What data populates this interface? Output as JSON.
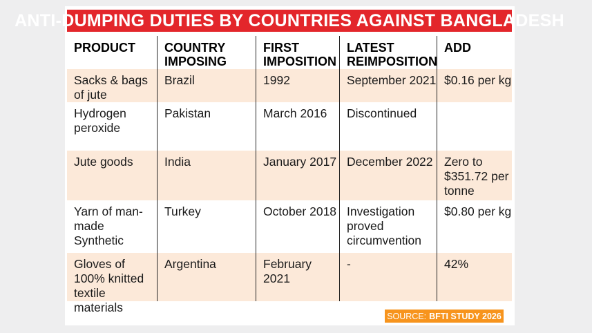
{
  "title": "ANTI-DUMPING DUTIES BY COUNTRIES AGAINST BANGLADESH",
  "columns": [
    "PRODUCT",
    "COUNTRY IMPOSING ADD",
    "FIRST IMPOSITION",
    "LATEST REIMPOSITION",
    "ADD"
  ],
  "rows": [
    [
      "Sacks & bags of jute",
      "Brazil",
      "1992",
      "September 2021",
      "$0.16 per kg"
    ],
    [
      "Hydrogen peroxide",
      "Pakistan",
      "March 2016",
      "Discontinued",
      ""
    ],
    [
      "Jute goods",
      "India",
      "January 2017",
      "December 2022",
      "Zero to $351.72 per tonne"
    ],
    [
      "Yarn of man-made Synthetic",
      "Turkey",
      "October 2018",
      "Investigation proved circumvention",
      "$0.80 per kg"
    ],
    [
      "Gloves of 100% knitted textile materials",
      "Argentina",
      "February 2021",
      "-",
      "42%"
    ]
  ],
  "source": {
    "prefix": "SOURCE:",
    "name": "BFTI STUDY 2026"
  },
  "colors": {
    "title_bg": "#e3262b",
    "row_shade": "#fce9d9",
    "source_bg": "#f7941d"
  },
  "chart_data": {
    "type": "table",
    "title": "ANTI-DUMPING DUTIES BY COUNTRIES AGAINST BANGLADESH",
    "columns": [
      "PRODUCT",
      "COUNTRY IMPOSING ADD",
      "FIRST IMPOSITION",
      "LATEST REIMPOSITION",
      "ADD"
    ],
    "rows": [
      [
        "Sacks & bags of jute",
        "Brazil",
        "1992",
        "September 2021",
        "$0.16 per kg"
      ],
      [
        "Hydrogen peroxide",
        "Pakistan",
        "March 2016",
        "Discontinued",
        ""
      ],
      [
        "Jute goods",
        "India",
        "January 2017",
        "December 2022",
        "Zero to $351.72 per tonne"
      ],
      [
        "Yarn of man-made Synthetic",
        "Turkey",
        "October 2018",
        "Investigation proved circumvention",
        "$0.80 per kg"
      ],
      [
        "Gloves of 100% knitted textile materials",
        "Argentina",
        "February 2021",
        "-",
        "42%"
      ]
    ]
  }
}
